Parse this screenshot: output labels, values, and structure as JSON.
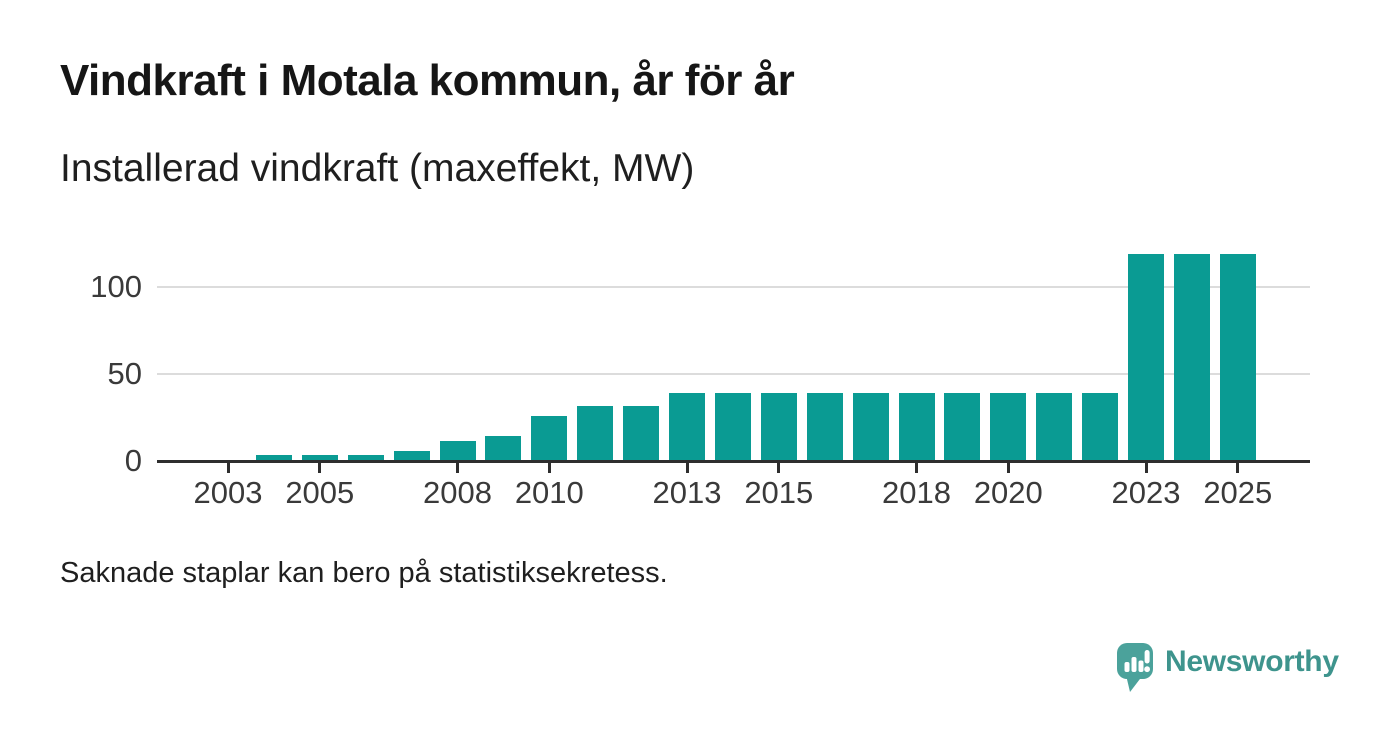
{
  "header": {
    "title": "Vindkraft i Motala kommun, år för år",
    "subtitle": "Installerad vindkraft (maxeffekt, MW)"
  },
  "chart_data": {
    "type": "bar",
    "title": "Vindkraft i Motala kommun, år för år",
    "subtitle": "Installerad vindkraft (maxeffekt, MW)",
    "unit": "MW",
    "x": [
      2002,
      2003,
      2004,
      2005,
      2006,
      2007,
      2008,
      2009,
      2010,
      2011,
      2012,
      2013,
      2014,
      2015,
      2016,
      2017,
      2018,
      2019,
      2020,
      2021,
      2022,
      2023,
      2024,
      2025
    ],
    "values": [
      null,
      null,
      3.4,
      3.4,
      3.4,
      5.7,
      11.5,
      14.2,
      26.1,
      31.4,
      31.4,
      39,
      39,
      39,
      39,
      39,
      39,
      39,
      39,
      39,
      39,
      119,
      119,
      119
    ],
    "missing_years": [
      2002,
      2003
    ],
    "x_tick_years": [
      2003,
      2005,
      2008,
      2010,
      2013,
      2015,
      2018,
      2020,
      2023,
      2025
    ],
    "y_ticks": [
      0,
      50,
      100
    ],
    "ylim": [
      0,
      125
    ],
    "grid": "horizontal",
    "legend": "none",
    "bar_color": "#0a9b93",
    "note": "Saknade staplar kan bero på statistiksekretess."
  },
  "footer": {
    "note": "Saknade staplar kan bero på statistiksekretess.",
    "brand": "Newsworthy"
  },
  "colors": {
    "bar": "#0a9b93",
    "axis": "#2e2e2e",
    "gridline": "#dcdcdc",
    "title_text": "#161616",
    "body_text": "#1f1f1f",
    "tick_text": "#3a3a3a",
    "logo_mark": "#4ba29b",
    "logo_text": "#3e948d",
    "background": "#ffffff"
  }
}
